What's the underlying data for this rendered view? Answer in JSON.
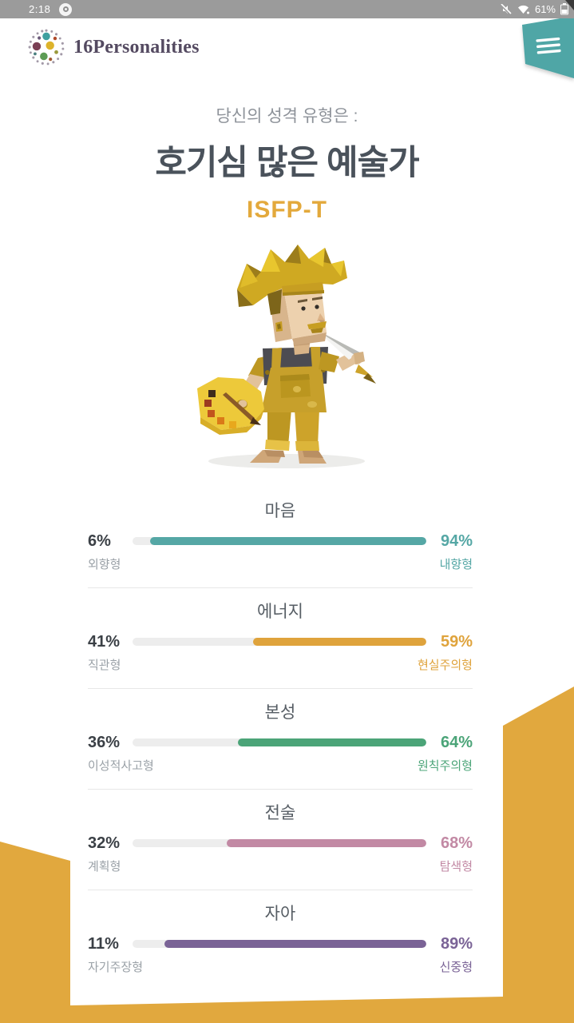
{
  "status_bar": {
    "time": "2:18",
    "battery_percent": "61%",
    "icons": [
      "notification-icon",
      "mute-icon",
      "wifi-icon",
      "battery-icon"
    ]
  },
  "header": {
    "brand": "16Personalities",
    "menu_icon": "hamburger-menu-icon"
  },
  "result": {
    "intro": "당신의 성격 유형은 :",
    "type_name": "호기심 많은 예술가",
    "type_code": "ISFP-T",
    "character": "isfp-artist-illustration"
  },
  "traits": [
    {
      "title": "마음",
      "left_pct": "6%",
      "right_pct": "94%",
      "value": 94,
      "left_label": "외향형",
      "right_label": "내향형",
      "color": "#55A7A5"
    },
    {
      "title": "에너지",
      "left_pct": "41%",
      "right_pct": "59%",
      "value": 59,
      "left_label": "직관형",
      "right_label": "현실주의형",
      "color": "#DFA33C"
    },
    {
      "title": "본성",
      "left_pct": "36%",
      "right_pct": "64%",
      "value": 64,
      "left_label": "이성적사고형",
      "right_label": "원칙주의형",
      "color": "#4BA478"
    },
    {
      "title": "전술",
      "left_pct": "32%",
      "right_pct": "68%",
      "value": 68,
      "left_label": "계획형",
      "right_label": "탐색형",
      "color": "#C289A4"
    },
    {
      "title": "자아",
      "left_pct": "11%",
      "right_pct": "89%",
      "value": 89,
      "left_label": "자기주장형",
      "right_label": "신중형",
      "color": "#7A6396"
    }
  ],
  "colors": {
    "status_bar_bg": "#9B9B9B",
    "menu_teal": "#4FA6A6",
    "gold_background": "#E1A83E",
    "brand_text": "#544A61",
    "type_code_gold": "#E3A93C",
    "heading_dark": "#4A525B",
    "bar_track": "#EDEDED"
  }
}
